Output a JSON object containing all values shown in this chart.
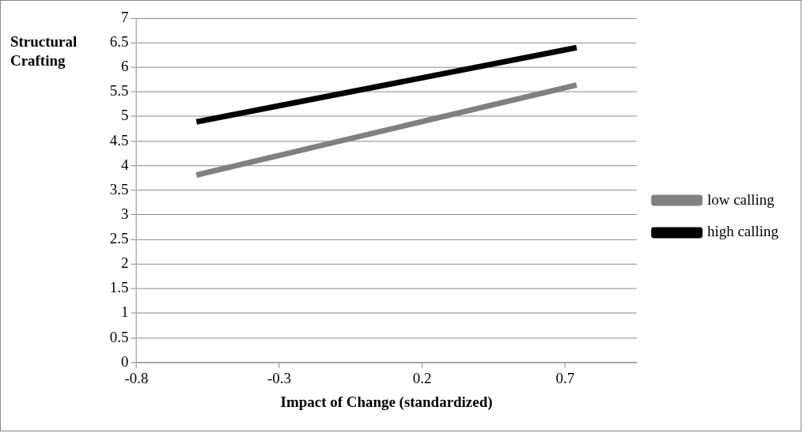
{
  "chart_data": {
    "type": "line",
    "xlabel": "Impact of Change (standardized)",
    "ylabel": "Structural Crafting",
    "xlim": [
      -0.8,
      0.95
    ],
    "xticks": [
      -0.8,
      -0.3,
      0.2,
      0.7
    ],
    "ylim": [
      0,
      7
    ],
    "yticks": [
      0,
      0.5,
      1,
      1.5,
      2,
      2.5,
      3,
      3.5,
      4,
      4.5,
      5,
      5.5,
      6,
      6.5,
      7
    ],
    "x": [
      -0.59,
      0.74
    ],
    "series": [
      {
        "name": "low calling",
        "color": "#808080",
        "values": [
          3.81,
          5.64
        ]
      },
      {
        "name": "high calling",
        "color": "#000000",
        "values": [
          4.89,
          6.4
        ]
      }
    ],
    "grid": "y",
    "legend": "right",
    "marker": "none",
    "line_style": "solid"
  }
}
